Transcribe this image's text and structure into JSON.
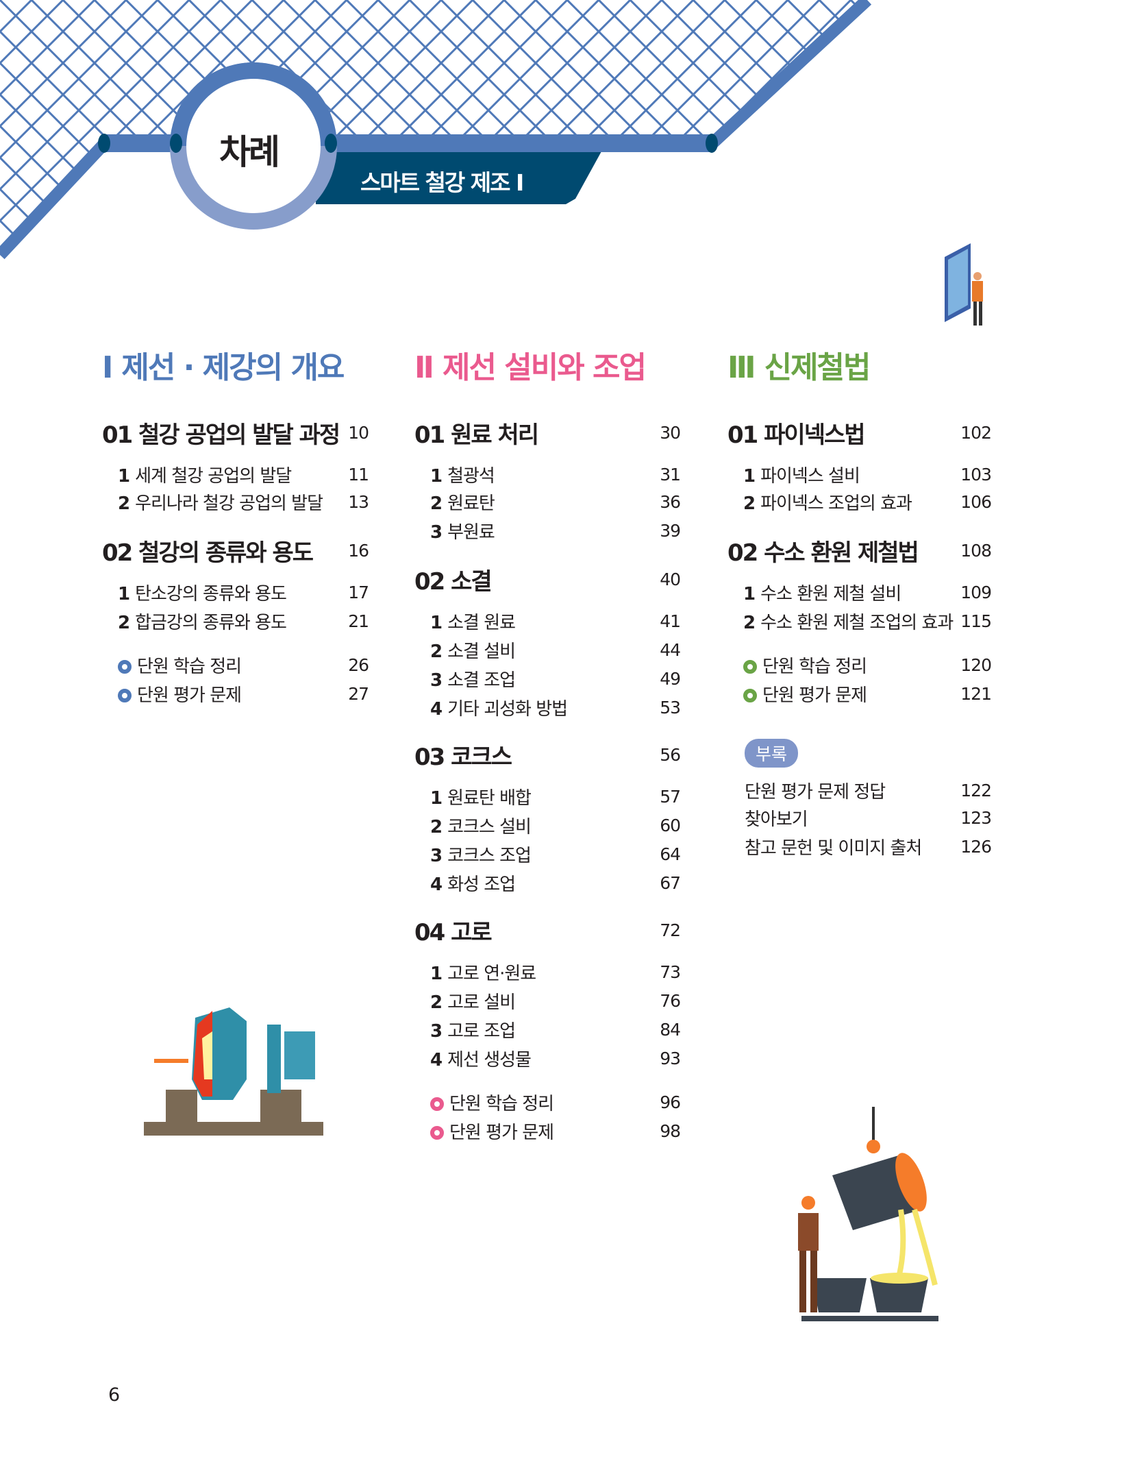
{
  "header": {
    "title": "차례",
    "subtitle": "스마트 철강 제조 Ⅰ"
  },
  "colors": {
    "blue": "#4f79b8",
    "pink": "#ea5a8e",
    "green": "#6aa446",
    "navy": "#004a70",
    "circle_light": "#879dcb"
  },
  "columns": [
    {
      "numeral": "Ⅰ",
      "title": "제선 · 제강의 개요",
      "color": "#4f79b8",
      "rows": [
        {
          "type": "chapter",
          "label": "01 철강 공업의 발달 과정",
          "page": "10"
        },
        {
          "type": "item",
          "num": "1",
          "label": "세계 철강 공업의 발달",
          "page": "11"
        },
        {
          "type": "item",
          "num": "2",
          "label": "우리나라 철강 공업의 발달",
          "page": "13"
        },
        {
          "type": "chapter",
          "label": "02 철강의 종류와 용도",
          "page": "16"
        },
        {
          "type": "item",
          "num": "1",
          "label": "탄소강의 종류와 용도",
          "page": "17"
        },
        {
          "type": "item",
          "num": "2",
          "label": "합금강의 종류와 용도",
          "page": "21"
        },
        {
          "type": "bullet",
          "label": "단원 학습 정리",
          "page": "26"
        },
        {
          "type": "bullet",
          "label": "단원 평가 문제",
          "page": "27"
        }
      ]
    },
    {
      "numeral": "Ⅱ",
      "title": "제선 설비와 조업",
      "color": "#ea5a8e",
      "rows": [
        {
          "type": "chapter",
          "label": "01 원료 처리",
          "page": "30"
        },
        {
          "type": "item",
          "num": "1",
          "label": "철광석",
          "page": "31"
        },
        {
          "type": "item",
          "num": "2",
          "label": "원료탄",
          "page": "36"
        },
        {
          "type": "item",
          "num": "3",
          "label": "부원료",
          "page": "39"
        },
        {
          "type": "chapter",
          "label": "02 소결",
          "page": "40"
        },
        {
          "type": "item",
          "num": "1",
          "label": "소결 원료",
          "page": "41"
        },
        {
          "type": "item",
          "num": "2",
          "label": "소결 설비",
          "page": "44"
        },
        {
          "type": "item",
          "num": "3",
          "label": "소결 조업",
          "page": "49"
        },
        {
          "type": "item",
          "num": "4",
          "label": "기타 괴성화 방법",
          "page": "53"
        },
        {
          "type": "chapter",
          "label": "03 코크스",
          "page": "56"
        },
        {
          "type": "item",
          "num": "1",
          "label": "원료탄 배합",
          "page": "57"
        },
        {
          "type": "item",
          "num": "2",
          "label": "코크스 설비",
          "page": "60"
        },
        {
          "type": "item",
          "num": "3",
          "label": "코크스 조업",
          "page": "64"
        },
        {
          "type": "item",
          "num": "4",
          "label": "화성 조업",
          "page": "67"
        },
        {
          "type": "chapter",
          "label": "04 고로",
          "page": "72"
        },
        {
          "type": "item",
          "num": "1",
          "label": "고로 연·원료",
          "page": "73"
        },
        {
          "type": "item",
          "num": "2",
          "label": "고로 설비",
          "page": "76"
        },
        {
          "type": "item",
          "num": "3",
          "label": "고로 조업",
          "page": "84"
        },
        {
          "type": "item",
          "num": "4",
          "label": "제선 생성물",
          "page": "93"
        },
        {
          "type": "bullet",
          "label": "단원 학습 정리",
          "page": "96"
        },
        {
          "type": "bullet",
          "label": "단원 평가 문제",
          "page": "98"
        }
      ]
    },
    {
      "numeral": "Ⅲ",
      "title": "신제철법",
      "color": "#6aa446",
      "rows": [
        {
          "type": "chapter",
          "label": "01 파이넥스법",
          "page": "102"
        },
        {
          "type": "item",
          "num": "1",
          "label": "파이넥스 설비",
          "page": "103"
        },
        {
          "type": "item",
          "num": "2",
          "label": "파이넥스 조업의 효과",
          "page": "106"
        },
        {
          "type": "chapter",
          "label": "02 수소 환원 제철법",
          "page": "108"
        },
        {
          "type": "item",
          "num": "1",
          "label": "수소 환원 제철 설비",
          "page": "109"
        },
        {
          "type": "item",
          "num": "2",
          "label": "수소 환원 제철 조업의 효과",
          "page": "115"
        },
        {
          "type": "bullet",
          "label": "단원 학습 정리",
          "page": "120"
        },
        {
          "type": "bullet",
          "label": "단원 평가 문제",
          "page": "121"
        },
        {
          "type": "badge",
          "label": "부록"
        },
        {
          "type": "plain",
          "label": "단원 평가 문제 정답",
          "page": "122"
        },
        {
          "type": "plain",
          "label": "찾아보기",
          "page": "123"
        },
        {
          "type": "plain",
          "label": "참고 문헌 및 이미지 출처",
          "page": "126"
        }
      ]
    }
  ],
  "footer": {
    "page_number": "6"
  }
}
